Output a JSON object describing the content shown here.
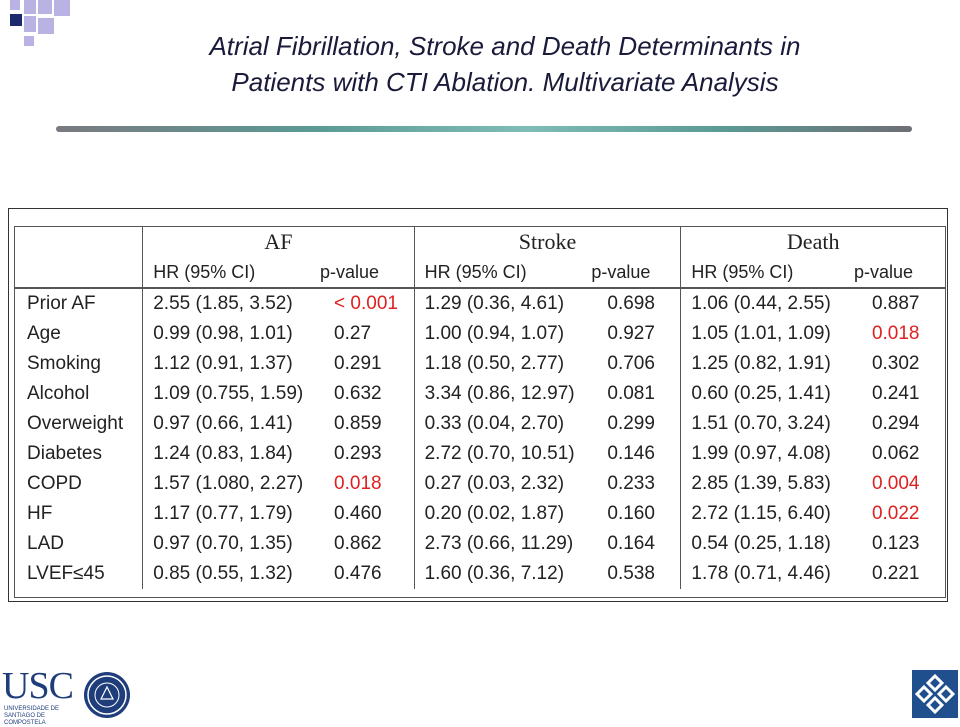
{
  "title": {
    "line1": "Atrial Fibrillation, Stroke and Death Determinants in",
    "line2": "Patients with CTI Ablation. Multivariate Analysis"
  },
  "table": {
    "groups": [
      "AF",
      "Stroke",
      "Death"
    ],
    "subheaders": {
      "hr": "HR  (95% CI)",
      "p": "p-value"
    },
    "rows": [
      {
        "var": "Prior AF",
        "af_hr": "2.55 (1.85, 3.52)",
        "af_p": "< 0.001",
        "st_hr": "1.29 (0.36, 4.61)",
        "st_p": "0.698",
        "de_hr": "1.06 (0.44, 2.55)",
        "de_p": "0.887"
      },
      {
        "var": "Age",
        "af_hr": "0.99 (0.98, 1.01)",
        "af_p": "0.27",
        "st_hr": "1.00 (0.94, 1.07)",
        "st_p": "0.927",
        "de_hr": "1.05 (1.01, 1.09)",
        "de_p": "0.018"
      },
      {
        "var": "Smoking",
        "af_hr": "1.12 (0.91, 1.37)",
        "af_p": "0.291",
        "st_hr": "1.18 (0.50, 2.77)",
        "st_p": "0.706",
        "de_hr": "1.25 (0.82, 1.91)",
        "de_p": "0.302"
      },
      {
        "var": "Alcohol",
        "af_hr": "1.09 (0.755, 1.59)",
        "af_p": "0.632",
        "st_hr": "3.34 (0.86, 12.97)",
        "st_p": "0.081",
        "de_hr": "0.60 (0.25, 1.41)",
        "de_p": "0.241"
      },
      {
        "var": "Overweight",
        "af_hr": "0.97 (0.66, 1.41)",
        "af_p": "0.859",
        "st_hr": "0.33 (0.04, 2.70)",
        "st_p": "0.299",
        "de_hr": "1.51 (0.70, 3.24)",
        "de_p": "0.294"
      },
      {
        "var": "Diabetes",
        "af_hr": "1.24 (0.83, 1.84)",
        "af_p": "0.293",
        "st_hr": "2.72 (0.70, 10.51)",
        "st_p": "0.146",
        "de_hr": "1.99 (0.97, 4.08)",
        "de_p": "0.062"
      },
      {
        "var": "COPD",
        "af_hr": "1.57 (1.080, 2.27)",
        "af_p": "0.018",
        "st_hr": "0.27 (0.03, 2.32)",
        "st_p": "0.233",
        "de_hr": "2.85 (1.39, 5.83)",
        "de_p": "0.004"
      },
      {
        "var": "HF",
        "af_hr": "1.17 (0.77, 1.79)",
        "af_p": "0.460",
        "st_hr": "0.20 (0.02, 1.87)",
        "st_p": "0.160",
        "de_hr": "2.72 (1.15, 6.40)",
        "de_p": "0.022"
      },
      {
        "var": "LAD",
        "af_hr": "0.97 (0.70, 1.35)",
        "af_p": "0.862",
        "st_hr": "2.73 (0.66, 11.29)",
        "st_p": "0.164",
        "de_hr": "0.54 (0.25, 1.18)",
        "de_p": "0.123"
      },
      {
        "var": "LVEF≤45",
        "af_hr": "0.85 (0.55, 1.32)",
        "af_p": "0.476",
        "st_hr": "1.60 (0.36, 7.12)",
        "st_p": "0.538",
        "de_hr": "1.78 (0.71, 4.46)",
        "de_p": "0.221"
      }
    ],
    "significant": [
      {
        "row": 0,
        "col": "af_p"
      },
      {
        "row": 6,
        "col": "af_p"
      },
      {
        "row": 1,
        "col": "de_p"
      },
      {
        "row": 6,
        "col": "de_p"
      },
      {
        "row": 7,
        "col": "de_p"
      }
    ],
    "significant_color": "#e02020"
  },
  "logos": {
    "usc": {
      "text": "USC",
      "subtext": "UNIVERSIDADE DE SANTIAGO DE COMPOSTELA"
    }
  },
  "colors": {
    "title_text": "#1a1a3a",
    "brand_blue": "#1f3d7a",
    "accent_navy": "#1c2a6e",
    "accent_lavender": "#b9b3e3"
  }
}
